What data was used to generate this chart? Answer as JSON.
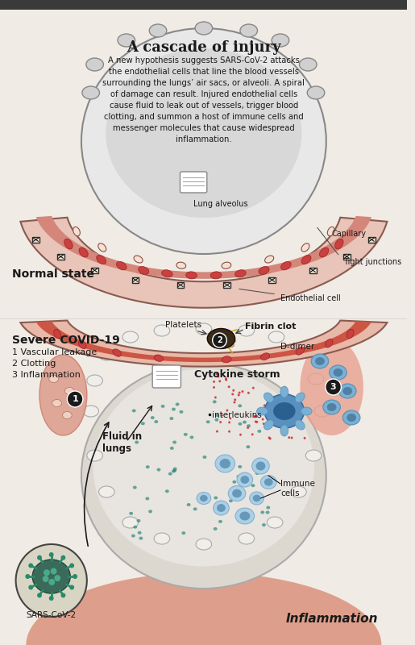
{
  "title": "A cascade of injury",
  "body_text": "A new hypothesis suggests SARS-CoV-2 attacks\nthe endothelial cells that line the blood vessels\nsurrounding the lungs’ air sacs, or alveoli. A spiral\nof damage can result. Injured endothelial cells\ncause fluid to leak out of vessels, trigger blood\nclotting, and summon a host of immune cells and\nmessenger molecules that cause widespread\ninflammation.",
  "normal_state_label": "Normal state",
  "severe_label": "Severe COVID-19",
  "severe_items": [
    "1 Vascular leakage",
    "2 Clotting",
    "3 Inflammation"
  ],
  "labels": {
    "lung_alveolus": "Lung alveolus",
    "capillary": "Capillary",
    "tight_junctions": "Tight junctions",
    "endothelial_cell": "Endothelial cell",
    "platelets": "Platelets",
    "fibrin_clot": "Fibrin clot",
    "d_dimer": "D-dimer",
    "cytokine_storm": "Cytokine storm",
    "interleukins": "interleukins",
    "fluid_in_lungs": "Fluid in\nlungs",
    "immune_cells": "Immune\ncells",
    "inflammation": "Inflammation",
    "sars_cov2": "SARS-CoV-2"
  },
  "colors": {
    "background": "#f5f0eb",
    "capillary_outer": "#e8c5b8",
    "capillary_inner": "#d4867a",
    "capillary_wall": "#c87060",
    "rbc": "#c84040",
    "alveolus_bg": "#e8e8e8",
    "alveolus_inner": "#d8d8d8",
    "top_bar": "#3a3a3a",
    "text_dark": "#1a1a1a",
    "text_medium": "#2a2a2a",
    "fluid_bg": "#d8dde8",
    "immune_cell_blue": "#7ab0d4",
    "immune_cell_light": "#b8d4e8",
    "cytokine_red": "#cc2222",
    "teal_dots": "#2a8a7a",
    "covid_green": "#2a6a5a",
    "inflammation_red": "#cc4433",
    "fibrin_yellow": "#d4aa44",
    "circle_bg": "#e8e0d8",
    "white": "#ffffff",
    "light_pink": "#f0d8d0",
    "medium_pink": "#e8b8a8",
    "dark_outline": "#2a2a2a"
  },
  "bg_color": "#f0ebe4"
}
